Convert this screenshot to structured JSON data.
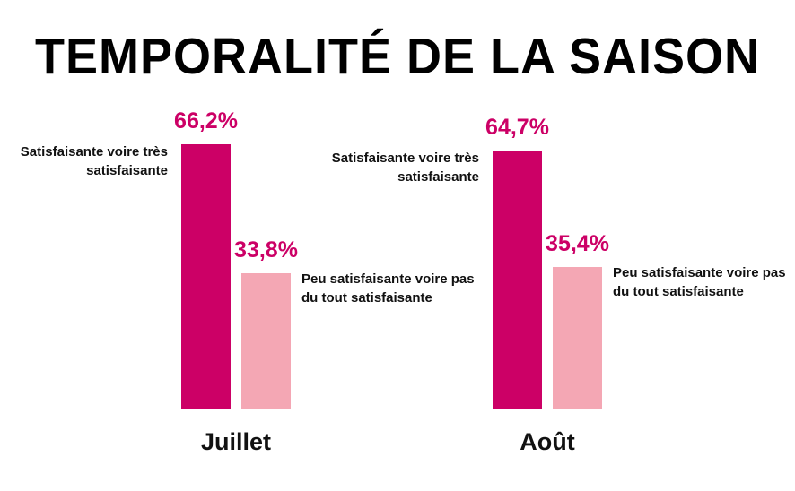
{
  "chart_data": {
    "type": "bar",
    "title": "TEMPORALITÉ DE LA SAISON",
    "categories": [
      "Juillet",
      "Août"
    ],
    "series": [
      {
        "name": "Satisfaisante voire très satisfaisante",
        "color": "#cc0066",
        "values": [
          66.2,
          64.7
        ],
        "value_labels": [
          "66,2%",
          "64,7%"
        ]
      },
      {
        "name": "Peu satisfaisante voire pas du tout satisfaisante",
        "color": "#f4a7b4",
        "values": [
          33.8,
          35.4
        ],
        "value_labels": [
          "33,8%",
          "35,4%"
        ]
      }
    ]
  }
}
